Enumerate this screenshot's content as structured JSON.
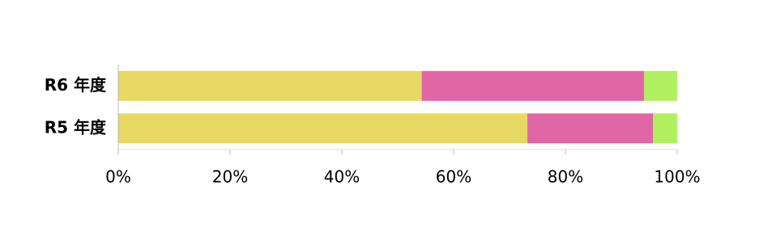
{
  "chart_data": {
    "type": "stacked_barh",
    "categories": [
      "R6 年度",
      "R5 年度"
    ],
    "series": [
      {
        "color": "#e6d862",
        "values": [
          54.3,
          73.2
        ]
      },
      {
        "color": "#e066a6",
        "values": [
          39.8,
          22.5
        ]
      },
      {
        "color": "#b0f060",
        "values": [
          5.9,
          4.3
        ]
      }
    ],
    "xlim": [
      0,
      100
    ],
    "xticks": [
      {
        "value": 0,
        "label": "0%"
      },
      {
        "value": 20,
        "label": "20%"
      },
      {
        "value": 40,
        "label": "40%"
      },
      {
        "value": 60,
        "label": "60%"
      },
      {
        "value": 80,
        "label": "80%"
      },
      {
        "value": 100,
        "label": "100%"
      }
    ]
  }
}
